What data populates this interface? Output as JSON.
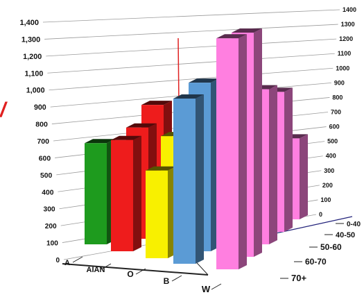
{
  "chart_data": {
    "type": "bar",
    "title": "",
    "subtitle": "",
    "xlabel": "",
    "ylabel": "",
    "ylim": [
      0,
      1400
    ],
    "y_ticks": [
      "0",
      "100",
      "200",
      "300",
      "400",
      "500",
      "600",
      "700",
      "800",
      "900",
      "1,000",
      "1,100",
      "1,200",
      "1,300",
      "1,400"
    ],
    "right_ticks": [
      "0",
      "100",
      "200",
      "300",
      "400",
      "500",
      "600",
      "700",
      "800",
      "900",
      "1000",
      "1100",
      "1200",
      "1300",
      "1400"
    ],
    "categories": [
      "A",
      "AIAN",
      "O",
      "B",
      "W"
    ],
    "series": [
      {
        "name": "0-40",
        "values": [
          600,
          660,
          520,
          980,
          1370
        ]
      },
      {
        "name": "40-50",
        "values": [
          null,
          660,
          650,
          1000,
          1330
        ]
      },
      {
        "name": "50-60",
        "values": [
          null,
          720,
          700,
          null,
          920
        ]
      },
      {
        "name": "60-70",
        "values": [
          null,
          null,
          null,
          null,
          830
        ]
      },
      {
        "name": "70+",
        "values": [
          null,
          null,
          null,
          null,
          480
        ]
      }
    ],
    "category_colors": {
      "A": "#1e9b1e",
      "AIAN": "#ee1c1c",
      "O": "#f8f000",
      "B": "#5b9bd5",
      "W": "#ff7fe0"
    },
    "partial_text_left": "/",
    "grid": true,
    "three_d": true
  }
}
